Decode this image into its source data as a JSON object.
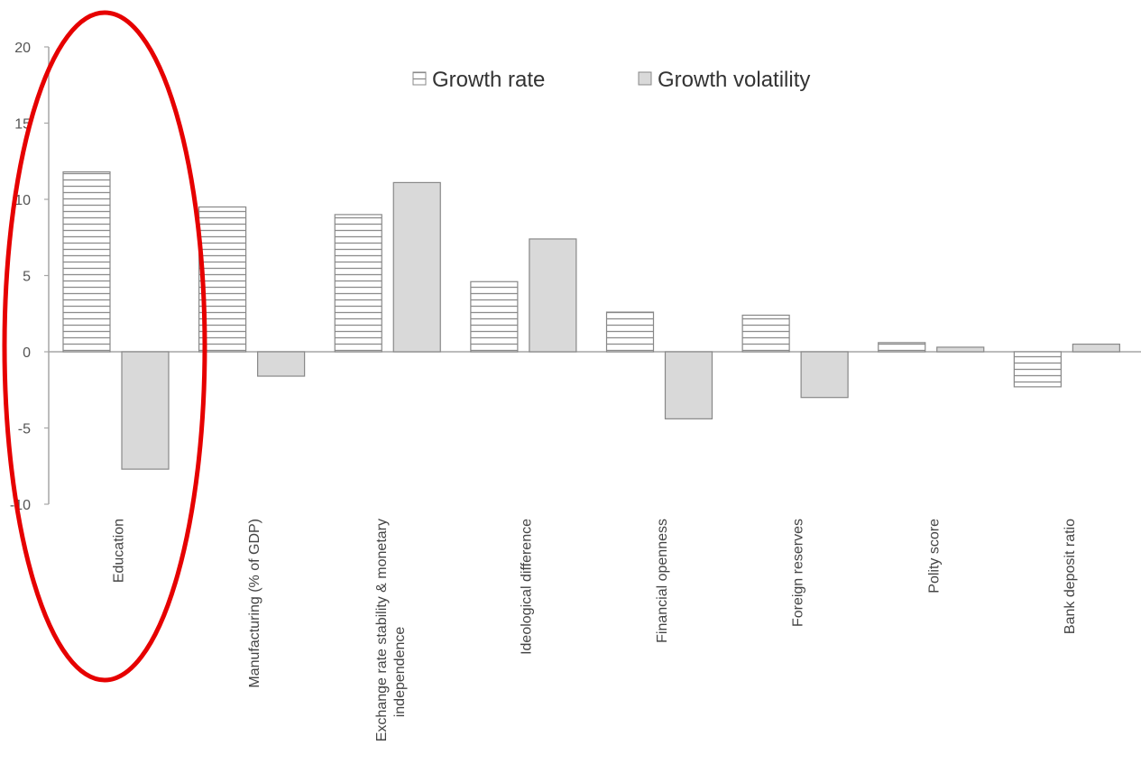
{
  "chart_data": {
    "type": "bar",
    "categories": [
      [
        "Education"
      ],
      [
        "Manufacturing (% of GDP)"
      ],
      [
        "Exchange rate stability & monetary",
        "independence"
      ],
      [
        "Ideological difference"
      ],
      [
        "Financial openness"
      ],
      [
        "Foreign reserves"
      ],
      [
        "Polity score"
      ],
      [
        "Bank deposit ratio"
      ]
    ],
    "series": [
      {
        "name": "Growth rate",
        "values": [
          11.8,
          9.5,
          9.0,
          4.6,
          2.6,
          2.4,
          0.6,
          -2.3
        ],
        "pattern": "horizontal-stripes",
        "color": "#ffffff",
        "stroke": "#888888"
      },
      {
        "name": "Growth volatility",
        "values": [
          -7.7,
          -1.6,
          11.1,
          7.4,
          -4.4,
          -3.0,
          0.3,
          0.5
        ],
        "pattern": "solid",
        "color": "#d9d9d9",
        "stroke": "#888888"
      }
    ],
    "y_ticks": [
      "20",
      "15",
      "10",
      "5",
      "0",
      "-5",
      "-10"
    ],
    "ylim": [
      -10,
      20
    ],
    "legend_position": "top",
    "highlight": {
      "shape": "ellipse",
      "color": "#e60000",
      "target": "Education"
    }
  }
}
